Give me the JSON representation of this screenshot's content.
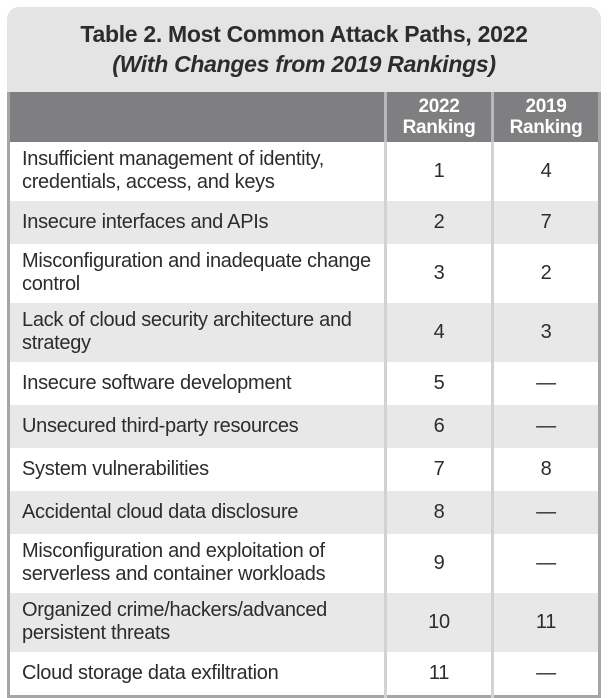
{
  "chart_data": {
    "type": "table",
    "title": "Table 2. Most Common Attack Paths, 2022",
    "subtitle": "(With Changes from 2019 Rankings)",
    "columns": [
      "",
      "2022 Ranking",
      "2019 Ranking"
    ],
    "rows": [
      [
        "Insufficient management of identity, credentials, access, and keys",
        "1",
        "4"
      ],
      [
        "Insecure interfaces and APIs",
        "2",
        "7"
      ],
      [
        "Misconfiguration and inadequate change control",
        "3",
        "2"
      ],
      [
        "Lack of cloud security architecture and strategy",
        "4",
        "3"
      ],
      [
        "Insecure software development",
        "5",
        "—"
      ],
      [
        "Unsecured third-party resources",
        "6",
        "—"
      ],
      [
        "System vulnerabilities",
        "7",
        "8"
      ],
      [
        "Accidental cloud data disclosure",
        "8",
        "—"
      ],
      [
        "Misconfiguration and exploitation of serverless and container workloads",
        "9",
        "—"
      ],
      [
        "Organized crime/hackers/advanced persistent threats",
        "10",
        "11"
      ],
      [
        "Cloud storage data exfiltration",
        "11",
        "—"
      ]
    ],
    "layout": {
      "grid": false,
      "row_striping": "white / light-gray alternating",
      "header_position": "top"
    }
  },
  "colors": {
    "title_bg": "#e4e4e5",
    "header_bg": "#7f7f81",
    "header_text": "#ffffff",
    "row_bg": "#ffffff",
    "row_alt_bg": "#e8e8e9",
    "text": "#2c2c2e",
    "border_outer": "#a6a6a8",
    "border_inner": "#d2d2d4"
  }
}
